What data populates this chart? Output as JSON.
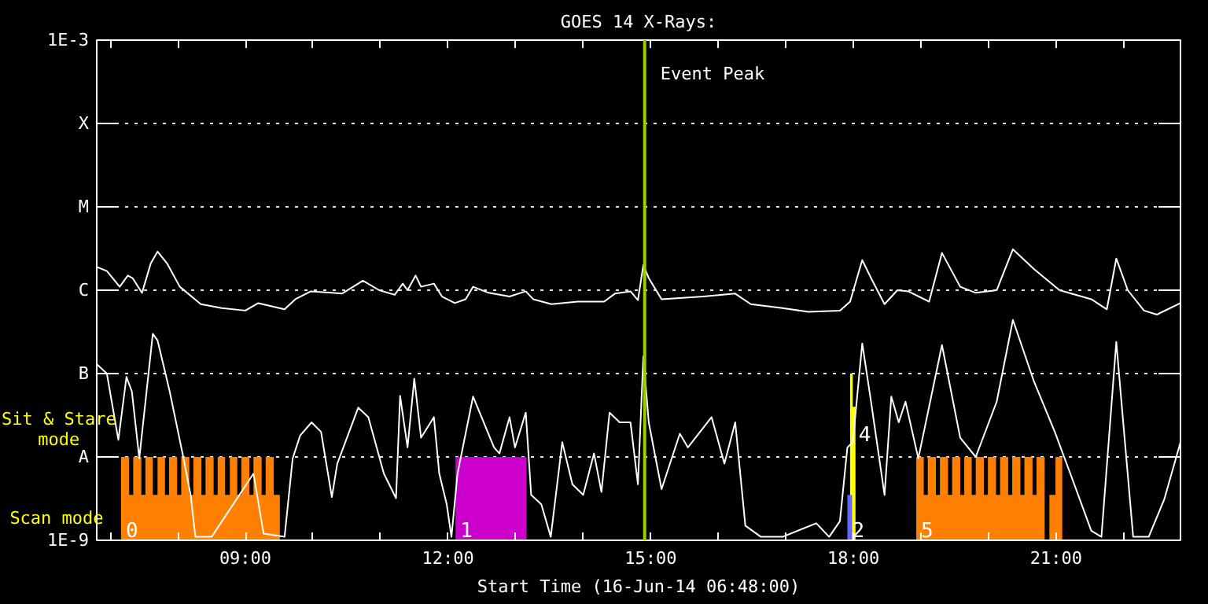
{
  "chart_data": {
    "type": "line",
    "title": "GOES 14 X-Rays:",
    "xlabel": "Start Time (16-Jun-14 06:48:00)",
    "log": "y",
    "grid": "y",
    "xlim": [
      6.8,
      22.84
    ],
    "xticks": [
      {
        "value": 7,
        "label": null
      },
      {
        "value": 8,
        "label": null
      },
      {
        "value": 9,
        "label": "09:00"
      },
      {
        "value": 10,
        "label": null
      },
      {
        "value": 11,
        "label": null
      },
      {
        "value": 12,
        "label": "12:00"
      },
      {
        "value": 13,
        "label": null
      },
      {
        "value": 14,
        "label": null
      },
      {
        "value": 15,
        "label": "15:00"
      },
      {
        "value": 16,
        "label": null
      },
      {
        "value": 17,
        "label": null
      },
      {
        "value": 18,
        "label": "18:00"
      },
      {
        "value": 19,
        "label": null
      },
      {
        "value": 20,
        "label": null
      },
      {
        "value": 21,
        "label": "21:00"
      },
      {
        "value": 22,
        "label": null
      }
    ],
    "ylim": [
      1e-09,
      0.001
    ],
    "yticks": [
      {
        "value": 1e-09,
        "label": "1E-9"
      },
      {
        "value": 1e-08,
        "label": "A"
      },
      {
        "value": 1e-07,
        "label": "B"
      },
      {
        "value": 1e-06,
        "label": "C"
      },
      {
        "value": 1e-05,
        "label": "M"
      },
      {
        "value": 0.0001,
        "label": "X"
      },
      {
        "value": 0.001,
        "label": "1E-3"
      }
    ],
    "series": [
      {
        "type": "area",
        "name": "0",
        "color": "#ff8000",
        "x": [
          7.16,
          7.28,
          7.28,
          7.34,
          7.34,
          7.46,
          7.46,
          7.52,
          7.52,
          7.63,
          7.63,
          7.7,
          7.7,
          7.81,
          7.81,
          7.87,
          7.87,
          7.99,
          7.99,
          8.05,
          8.05,
          8.17,
          8.17,
          8.23,
          8.23,
          8.35,
          8.35,
          8.41,
          8.41,
          8.53,
          8.53,
          8.59,
          8.59,
          8.7,
          8.7,
          8.77,
          8.77,
          8.88,
          8.88,
          8.94,
          8.94,
          9.06,
          9.06,
          9.12,
          9.12,
          9.24,
          9.24,
          9.3,
          9.3,
          9.42,
          9.42,
          9.51
        ],
        "values": [
          1e-08,
          1e-08,
          3.5e-09,
          3.5e-09,
          1e-08,
          1e-08,
          3.5e-09,
          3.5e-09,
          1e-08,
          1e-08,
          3.5e-09,
          3.5e-09,
          1e-08,
          1e-08,
          3.5e-09,
          3.5e-09,
          1e-08,
          1e-08,
          3.5e-09,
          3.5e-09,
          1e-08,
          1e-08,
          3.5e-09,
          3.5e-09,
          1e-08,
          1e-08,
          3.5e-09,
          3.5e-09,
          1e-08,
          1e-08,
          3.5e-09,
          3.5e-09,
          1e-08,
          1e-08,
          3.5e-09,
          3.5e-09,
          1e-08,
          1e-08,
          3.5e-09,
          3.5e-09,
          1e-08,
          1e-08,
          3.5e-09,
          3.5e-09,
          1e-08,
          1e-08,
          3.5e-09,
          3.5e-09,
          1e-08,
          1e-08,
          3.5e-09,
          3.5e-09
        ]
      },
      {
        "type": "area",
        "name": "1",
        "color": "#cc00cc",
        "x": [
          12.11,
          13.16
        ],
        "values": [
          1e-08,
          1e-08
        ]
      },
      {
        "type": "area",
        "name": "4",
        "color": "#ffff00",
        "x": [
          17.95,
          17.99,
          17.99,
          18.03
        ],
        "values": [
          1e-07,
          1e-07,
          4e-08,
          4e-08
        ]
      },
      {
        "type": "area",
        "name": "2",
        "color": "#6666ff",
        "x": [
          17.91,
          17.98
        ],
        "values": [
          3.5e-09,
          3.5e-09
        ]
      },
      {
        "type": "area",
        "name": "5",
        "color": "#ff8000",
        "x": [
          18.93,
          19.04,
          19.04,
          19.1,
          19.1,
          19.22,
          19.22,
          19.28,
          19.28,
          19.4,
          19.4,
          19.46,
          19.46,
          19.58,
          19.58,
          19.64,
          19.64,
          19.75,
          19.75,
          19.81,
          19.81,
          19.93,
          19.93,
          19.99,
          19.99,
          20.11,
          20.11,
          20.17,
          20.17,
          20.29,
          20.29,
          20.35,
          20.35,
          20.47,
          20.47,
          20.53,
          20.53,
          20.65,
          20.65,
          20.71,
          20.71,
          20.83,
          20.83,
          20.9,
          20.9,
          20.99,
          20.99,
          21.09
        ],
        "values": [
          1e-08,
          1e-08,
          3.5e-09,
          3.5e-09,
          1e-08,
          1e-08,
          3.5e-09,
          3.5e-09,
          1e-08,
          1e-08,
          3.5e-09,
          3.5e-09,
          1e-08,
          1e-08,
          3.5e-09,
          3.5e-09,
          1e-08,
          1e-08,
          3.5e-09,
          3.5e-09,
          1e-08,
          1e-08,
          3.5e-09,
          3.5e-09,
          1e-08,
          1e-08,
          3.5e-09,
          3.5e-09,
          1e-08,
          1e-08,
          3.5e-09,
          3.5e-09,
          1e-08,
          1e-08,
          3.5e-09,
          3.5e-09,
          1e-08,
          1e-08,
          3.5e-09,
          3.5e-09,
          1e-08,
          1e-08,
          1e-09,
          1e-09,
          3.5e-09,
          3.5e-09,
          1e-08,
          1e-08
        ]
      },
      {
        "color": "#ffffff",
        "x": [
          6.8,
          6.95,
          7.14,
          7.26,
          7.33,
          7.47,
          7.6,
          7.7,
          7.84,
          8.03,
          8.34,
          8.65,
          9.0,
          9.19,
          9.58,
          9.74,
          9.97,
          10.28,
          10.43,
          10.74,
          10.98,
          11.21,
          11.33,
          11.4,
          11.52,
          11.6,
          11.79,
          11.91,
          12.1,
          12.26,
          12.37,
          12.6,
          12.91,
          13.15,
          13.26,
          13.53,
          13.92,
          14.31,
          14.47,
          14.7,
          14.81,
          14.89,
          14.97,
          15.16,
          15.78,
          16.25,
          16.48,
          16.95,
          17.33,
          17.8,
          17.95,
          18.13,
          18.26,
          18.46,
          18.65,
          18.81,
          19.12,
          19.31,
          19.58,
          19.81,
          20.12,
          20.36,
          20.67,
          21.05,
          21.52,
          21.75,
          21.89,
          22.06,
          22.3,
          22.49,
          22.84
        ],
        "values": [
          1.9e-06,
          1.7e-06,
          1.1e-06,
          1.5e-06,
          1.4e-06,
          9.3e-07,
          2.1e-06,
          2.9e-06,
          2.1e-06,
          1.1e-06,
          6.8e-07,
          6.1e-07,
          5.7e-07,
          7e-07,
          5.9e-07,
          7.8e-07,
          9.7e-07,
          9.3e-07,
          9.1e-07,
          1.3e-06,
          1e-06,
          8.8e-07,
          1.2e-06,
          1e-06,
          1.5e-06,
          1.1e-06,
          1.2e-06,
          8.4e-07,
          7e-07,
          7.8e-07,
          1.1e-06,
          9.3e-07,
          8.4e-07,
          9.7e-07,
          7.8e-07,
          6.8e-07,
          7.3e-07,
          7.3e-07,
          9.1e-07,
          9.7e-07,
          7.6e-07,
          2e-06,
          1.4e-06,
          7.8e-07,
          8.4e-07,
          9.1e-07,
          6.8e-07,
          6.1e-07,
          5.5e-07,
          5.7e-07,
          7.3e-07,
          2.3e-06,
          1.4e-06,
          6.8e-07,
          1e-06,
          9.7e-07,
          7.3e-07,
          2.8e-06,
          1.1e-06,
          9.3e-07,
          1e-06,
          3.1e-06,
          1.8e-06,
          1e-06,
          7.8e-07,
          5.9e-07,
          2.4e-06,
          1e-06,
          5.7e-07,
          5.1e-07,
          7e-07
        ]
      },
      {
        "color": "#ffffff",
        "x": [
          6.8,
          6.95,
          7.12,
          7.24,
          7.32,
          7.43,
          7.63,
          7.7,
          7.88,
          8.07,
          8.19,
          8.26,
          8.5,
          9.12,
          9.27,
          9.58,
          9.7,
          9.81,
          9.98,
          10.12,
          10.28,
          10.36,
          10.67,
          10.82,
          11.05,
          11.23,
          11.29,
          11.4,
          11.5,
          11.6,
          11.79,
          11.87,
          11.98,
          12.05,
          12.14,
          12.37,
          12.68,
          12.76,
          12.91,
          12.99,
          13.15,
          13.23,
          13.38,
          13.52,
          13.69,
          13.84,
          14.0,
          14.16,
          14.27,
          14.39,
          14.54,
          14.7,
          14.81,
          14.89,
          14.97,
          15.16,
          15.43,
          15.55,
          15.9,
          16.09,
          16.25,
          16.4,
          16.63,
          16.95,
          17.45,
          17.64,
          17.8,
          17.91,
          17.99,
          18.13,
          18.26,
          18.46,
          18.56,
          18.67,
          18.77,
          18.96,
          19.31,
          19.58,
          19.81,
          20.12,
          20.36,
          20.67,
          20.98,
          21.21,
          21.52,
          21.67,
          21.89,
          21.98,
          22.14,
          22.37,
          22.6,
          22.84
        ],
        "values": [
          1.3e-07,
          1e-07,
          1.6e-08,
          9.1e-08,
          6.1e-08,
          9.6e-09,
          3e-07,
          2.5e-07,
          6.1e-08,
          1.1e-08,
          3.5e-09,
          1.1e-09,
          1.1e-09,
          6.3e-09,
          1.2e-09,
          1.1e-09,
          9.6e-09,
          1.8e-08,
          2.6e-08,
          2e-08,
          3.3e-09,
          8.3e-09,
          3.9e-08,
          3e-08,
          6.3e-09,
          3.2e-09,
          5.4e-08,
          1.3e-08,
          8.7e-08,
          1.7e-08,
          3e-08,
          6.3e-09,
          2.7e-09,
          1.1e-09,
          6.3e-09,
          5.3e-08,
          1.3e-08,
          1.1e-08,
          3e-08,
          1.3e-08,
          3.4e-08,
          3.5e-09,
          2.7e-09,
          1.1e-09,
          1.5e-08,
          4.7e-09,
          3.5e-09,
          1.1e-08,
          3.8e-09,
          3.4e-08,
          2.6e-08,
          2.6e-08,
          4.7e-09,
          1.6e-07,
          2.6e-08,
          4.1e-09,
          1.9e-08,
          1.3e-08,
          3e-08,
          8.3e-09,
          2.6e-08,
          1.5e-09,
          1.1e-09,
          1.1e-09,
          1.6e-09,
          1.1e-09,
          1.7e-09,
          1.3e-08,
          1.5e-08,
          2.3e-07,
          4.6e-08,
          3.5e-09,
          5.3e-08,
          2.6e-08,
          4.6e-08,
          9.6e-09,
          2.2e-07,
          1.7e-08,
          1e-08,
          4.6e-08,
          4.4e-07,
          8.1e-08,
          2e-08,
          6.3e-09,
          1.3e-09,
          1.1e-09,
          2.4e-07,
          3.4e-08,
          1.1e-09,
          1.1e-09,
          3.1e-09,
          1.5e-08
        ]
      }
    ],
    "ref_lines": [
      {
        "axis": "x",
        "value": 14.91,
        "label": "Event Peak",
        "color": "#99cc00"
      }
    ],
    "annotations": [
      "Sit & Stare\nmode",
      "Scan mode"
    ]
  }
}
